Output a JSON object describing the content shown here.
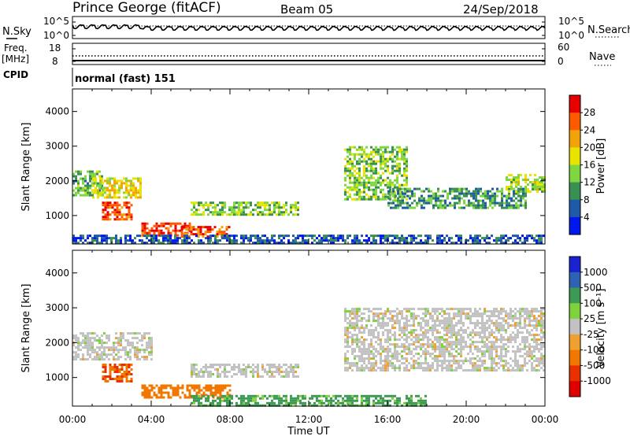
{
  "header": {
    "station": "Prince George (fitACF)",
    "beam": "Beam 05",
    "date": "24/Sep/2018"
  },
  "noise_panel": {
    "left_label": "N.Sky",
    "right_label": "N.Search",
    "left_ticks": [
      "10^5",
      "10^0"
    ],
    "right_ticks": [
      "10^5",
      "10^0"
    ]
  },
  "freq_panel": {
    "left_label": "Freq.",
    "left_unit": "[MHz]",
    "right_label": "Nave",
    "left_ticks": [
      "18",
      "8"
    ],
    "right_ticks": [
      "60",
      "0"
    ]
  },
  "cpid": {
    "label": "CPID",
    "value": "normal (fast) 151"
  },
  "power_panel": {
    "ylabel": "Slant Range [km]",
    "colorbar_label": "Power [dB]",
    "colorbar_ticks": [
      "28",
      "24",
      "20",
      "16",
      "12",
      "8",
      "4"
    ],
    "colorbar_colors": [
      "#e60000",
      "#ff5a00",
      "#f2a30a",
      "#e8e400",
      "#7ed640",
      "#3a8f52",
      "#1f5aa8",
      "#0018ee"
    ]
  },
  "velocity_panel": {
    "ylabel": "Slant Range [km]",
    "colorbar_label": "Velocity [m s⁻¹]",
    "colorbar_ticks": [
      "1000",
      "500",
      "100",
      "25",
      "-25",
      "-100",
      "-500",
      "-1000"
    ],
    "colorbar_colors": [
      "#1a22d0",
      "#2e62b2",
      "#3d9a54",
      "#7fd23c",
      "#c2c2c2",
      "#f0a030",
      "#f07800",
      "#e83000",
      "#e00000"
    ]
  },
  "time_axis": {
    "label": "Time UT",
    "ticks": [
      "00:00",
      "04:00",
      "08:00",
      "12:00",
      "16:00",
      "20:00",
      "00:00"
    ]
  },
  "chart_data": [
    {
      "type": "heatmap",
      "title": "Power",
      "ylabel": "Slant Range [km]",
      "xlabel": "Time UT",
      "x_range_hours": [
        0,
        24
      ],
      "ylim": [
        180,
        4650
      ],
      "y_ticks": [
        1000,
        2000,
        3000,
        4000
      ],
      "colorbar": {
        "label": "Power [dB]",
        "ticks": [
          4,
          8,
          12,
          16,
          20,
          24,
          28
        ]
      },
      "regions": [
        {
          "t": [
            0.0,
            1.5
          ],
          "range_km": [
            1600,
            2300
          ],
          "value_db": 12
        },
        {
          "t": [
            1.0,
            3.5
          ],
          "range_km": [
            1500,
            2100
          ],
          "value_db": 18
        },
        {
          "t": [
            1.5,
            3.0
          ],
          "range_km": [
            900,
            1400
          ],
          "value_db": 28
        },
        {
          "t": [
            3.5,
            6.0
          ],
          "range_km": [
            450,
            800
          ],
          "value_db": 28
        },
        {
          "t": [
            5.5,
            8.0
          ],
          "range_km": [
            400,
            700
          ],
          "value_db": 26
        },
        {
          "t": [
            6.0,
            11.5
          ],
          "range_km": [
            1000,
            1400
          ],
          "value_db": 14
        },
        {
          "t": [
            13.8,
            17.0
          ],
          "range_km": [
            1500,
            3000
          ],
          "value_db": 14
        },
        {
          "t": [
            16.0,
            23.0
          ],
          "range_km": [
            1200,
            1800
          ],
          "value_db": 10
        },
        {
          "t": [
            22.0,
            24.0
          ],
          "range_km": [
            1700,
            2200
          ],
          "value_db": 16
        },
        {
          "t": [
            0.0,
            24.0
          ],
          "range_km": [
            180,
            450
          ],
          "value_db": 6
        }
      ]
    },
    {
      "type": "heatmap",
      "title": "Velocity",
      "ylabel": "Slant Range [km]",
      "xlabel": "Time UT",
      "x_range_hours": [
        0,
        24
      ],
      "ylim": [
        180,
        4650
      ],
      "y_ticks": [
        1000,
        2000,
        3000,
        4000
      ],
      "colorbar": {
        "label": "Velocity [m s⁻¹]",
        "ticks": [
          1000,
          500,
          100,
          25,
          -25,
          -100,
          -500,
          -1000
        ]
      },
      "regions": [
        {
          "t": [
            0.0,
            4.0
          ],
          "range_km": [
            1500,
            2300
          ],
          "value_ms": 0
        },
        {
          "t": [
            1.5,
            3.0
          ],
          "range_km": [
            900,
            1400
          ],
          "value_ms": -300
        },
        {
          "t": [
            3.5,
            8.0
          ],
          "range_km": [
            400,
            800
          ],
          "value_ms": -150
        },
        {
          "t": [
            6.0,
            11.5
          ],
          "range_km": [
            1000,
            1400
          ],
          "value_ms": 0
        },
        {
          "t": [
            13.8,
            24.0
          ],
          "range_km": [
            1200,
            3000
          ],
          "value_ms": 0
        },
        {
          "t": [
            6.0,
            18.0
          ],
          "range_km": [
            180,
            500
          ],
          "value_ms": 80
        }
      ]
    }
  ]
}
